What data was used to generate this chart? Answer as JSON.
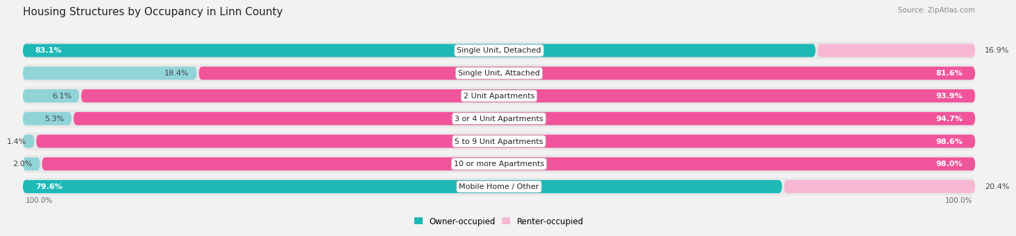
{
  "title": "Housing Structures by Occupancy in Linn County",
  "source": "Source: ZipAtlas.com",
  "categories": [
    "Single Unit, Detached",
    "Single Unit, Attached",
    "2 Unit Apartments",
    "3 or 4 Unit Apartments",
    "5 to 9 Unit Apartments",
    "10 or more Apartments",
    "Mobile Home / Other"
  ],
  "owner_pct": [
    83.1,
    18.4,
    6.1,
    5.3,
    1.4,
    2.0,
    79.6
  ],
  "renter_pct": [
    16.9,
    81.6,
    93.9,
    94.7,
    98.6,
    98.0,
    20.4
  ],
  "owner_color_strong": "#1db8b8",
  "owner_color_light": "#90d4d8",
  "renter_color_strong": "#f0549a",
  "renter_color_light": "#f7b8d4",
  "row_bg": "#e8e8e8",
  "fig_bg": "#f2f2f2",
  "title_fontsize": 11,
  "label_fontsize": 8,
  "bar_label_fontsize": 8,
  "legend_fontsize": 8.5,
  "source_fontsize": 7.5
}
